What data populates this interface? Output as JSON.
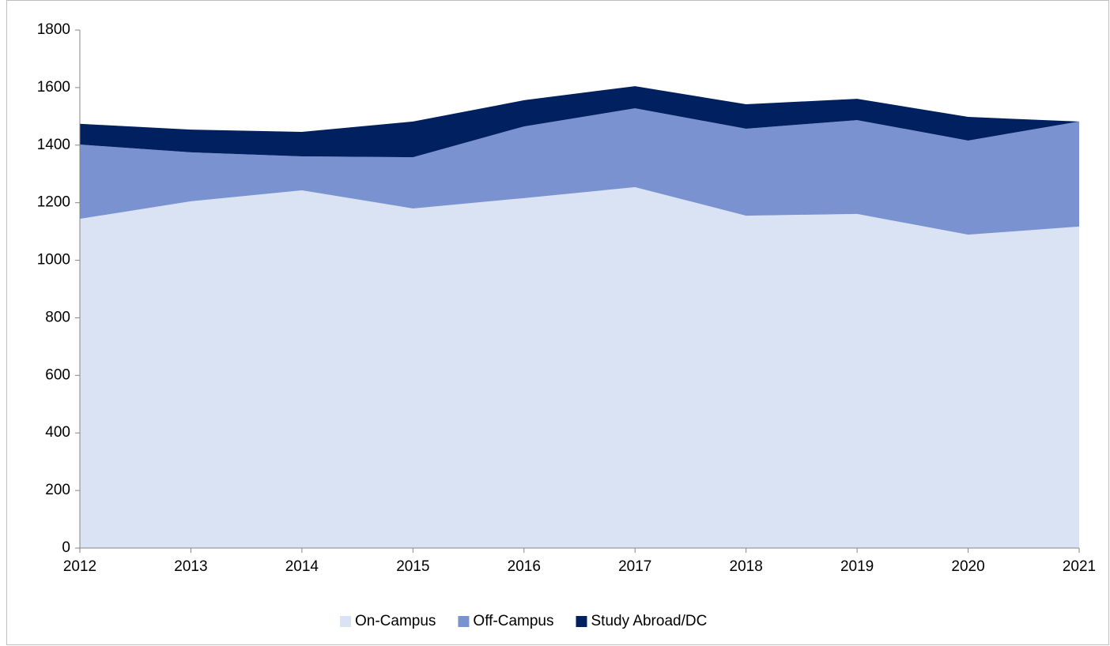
{
  "chart_data": {
    "type": "stacked_area",
    "categories": [
      "2012",
      "2013",
      "2014",
      "2015",
      "2016",
      "2017",
      "2018",
      "2019",
      "2020",
      "2021"
    ],
    "series": [
      {
        "name": "On-Campus",
        "color": "#dae3f3",
        "values": [
          1144,
          1205,
          1243,
          1180,
          1216,
          1254,
          1155,
          1161,
          1089,
          1117
        ]
      },
      {
        "name": "Off-Campus",
        "color": "#7a93d0",
        "values": [
          258,
          170,
          118,
          178,
          249,
          274,
          302,
          326,
          327,
          365
        ]
      },
      {
        "name": "Study Abroad/DC",
        "color": "#002060",
        "values": [
          72,
          79,
          85,
          124,
          91,
          77,
          85,
          74,
          82,
          0
        ]
      }
    ],
    "ylim": [
      0,
      1800
    ],
    "yticks": [
      0,
      200,
      400,
      600,
      800,
      1000,
      1200,
      1400,
      1600,
      1800
    ],
    "grid": false,
    "legend": "bottom"
  }
}
